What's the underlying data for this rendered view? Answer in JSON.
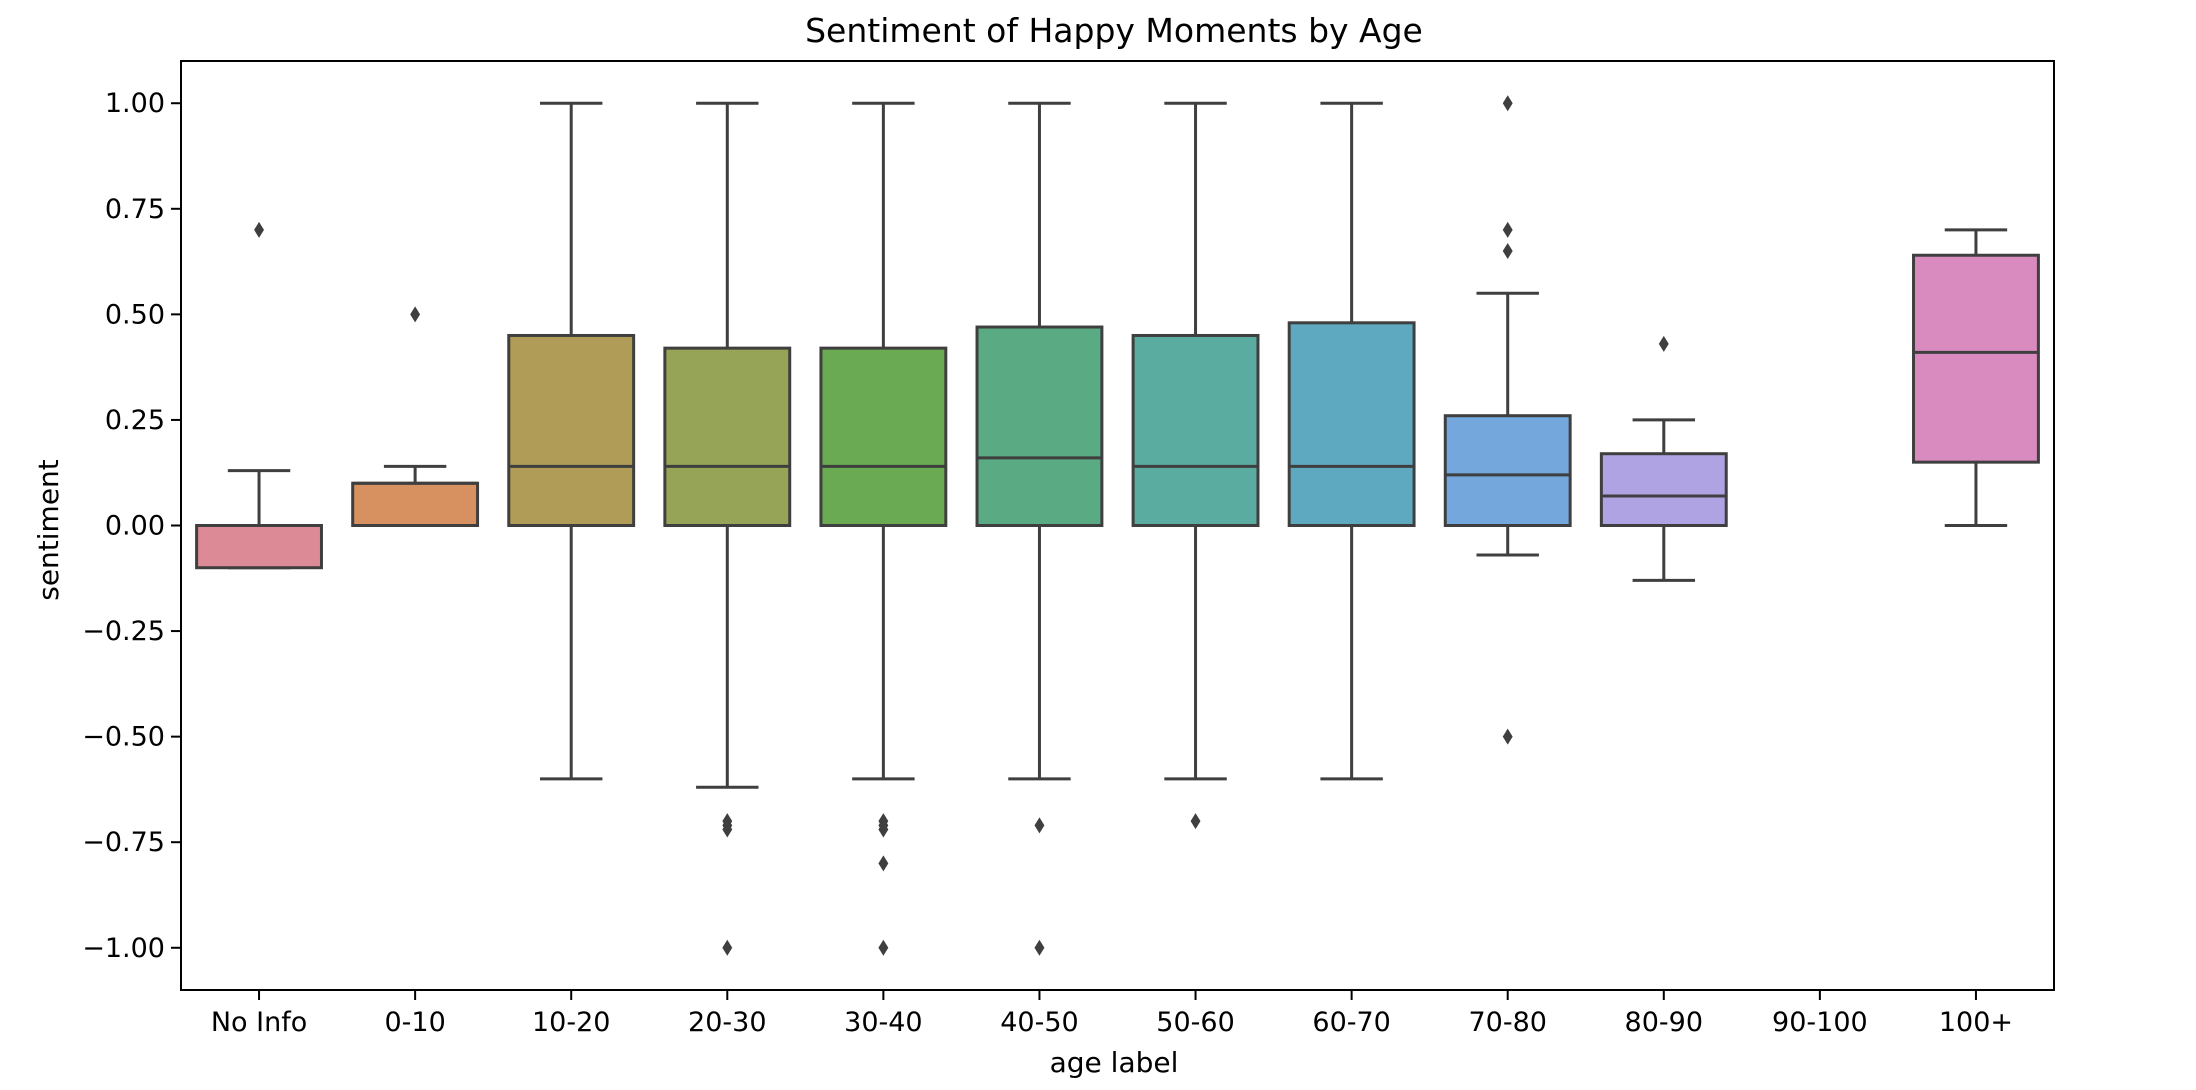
{
  "chart_data": {
    "type": "box",
    "title": "Sentiment of Happy Moments by Age",
    "xlabel": "age label",
    "ylabel": "sentiment",
    "ylim": [
      -1.1,
      1.1
    ],
    "yticks": [
      1.0,
      0.75,
      0.5,
      0.25,
      0.0,
      -0.25,
      -0.5,
      -0.75,
      -1.0
    ],
    "ytick_labels": [
      "1.00",
      "0.75",
      "0.50",
      "0.25",
      "0.00",
      "−0.25",
      "−0.50",
      "−0.75",
      "−1.00"
    ],
    "grid": false,
    "categories": [
      "No Info",
      "0-10",
      "10-20",
      "20-30",
      "30-40",
      "40-50",
      "50-60",
      "60-70",
      "70-80",
      "80-90",
      "90-100",
      "100+"
    ],
    "boxes": [
      {
        "q1": -0.1,
        "median": 0.0,
        "q3": 0.0,
        "whisker_low": -0.1,
        "whisker_high": 0.13,
        "outliers": [
          0.7
        ],
        "color": "#dd8a97"
      },
      {
        "q1": 0.0,
        "median": 0.1,
        "q3": 0.1,
        "whisker_low": 0.0,
        "whisker_high": 0.14,
        "outliers": [
          0.5
        ],
        "color": "#d79060"
      },
      {
        "q1": 0.0,
        "median": 0.14,
        "q3": 0.45,
        "whisker_low": -0.6,
        "whisker_high": 1.0,
        "outliers": [],
        "color": "#b19c57"
      },
      {
        "q1": 0.0,
        "median": 0.14,
        "q3": 0.42,
        "whisker_low": -0.62,
        "whisker_high": 1.0,
        "outliers": [
          -0.7,
          -0.71,
          -0.72,
          -1.0
        ],
        "color": "#96a457"
      },
      {
        "q1": 0.0,
        "median": 0.14,
        "q3": 0.42,
        "whisker_low": -0.6,
        "whisker_high": 1.0,
        "outliers": [
          -0.7,
          -0.71,
          -0.72,
          -0.8,
          -1.0
        ],
        "color": "#6aaa52"
      },
      {
        "q1": 0.0,
        "median": 0.16,
        "q3": 0.47,
        "whisker_low": -0.6,
        "whisker_high": 1.0,
        "outliers": [
          -0.71,
          -1.0
        ],
        "color": "#5aaa84"
      },
      {
        "q1": 0.0,
        "median": 0.14,
        "q3": 0.45,
        "whisker_low": -0.6,
        "whisker_high": 1.0,
        "outliers": [
          -0.7
        ],
        "color": "#5aaba0"
      },
      {
        "q1": 0.0,
        "median": 0.14,
        "q3": 0.48,
        "whisker_low": -0.6,
        "whisker_high": 1.0,
        "outliers": [],
        "color": "#5ea9c0"
      },
      {
        "q1": 0.0,
        "median": 0.12,
        "q3": 0.26,
        "whisker_low": -0.07,
        "whisker_high": 0.55,
        "outliers": [
          1.0,
          0.7,
          0.65,
          -0.5
        ],
        "color": "#74a7dc"
      },
      {
        "q1": 0.0,
        "median": 0.07,
        "q3": 0.17,
        "whisker_low": -0.13,
        "whisker_high": 0.25,
        "outliers": [
          0.43
        ],
        "color": "#b0a3e4"
      },
      null,
      {
        "q1": 0.15,
        "median": 0.41,
        "q3": 0.64,
        "whisker_low": 0.0,
        "whisker_high": 0.7,
        "outliers": [],
        "color": "#d98bc0"
      }
    ]
  }
}
